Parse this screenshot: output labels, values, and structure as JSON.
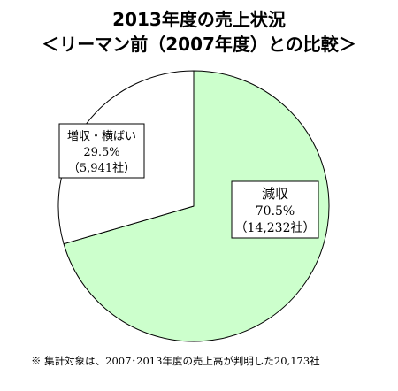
{
  "title_line1": "2013年度の売上状況",
  "title_line2": "＜リーマン前（2007年度）との比較＞",
  "chart_data": {
    "type": "pie",
    "start": "12 o'clock",
    "direction": "clockwise",
    "slices": [
      {
        "label": "減収",
        "percent": 70.5,
        "pct_label": "70.5%",
        "count_label": "（14,232社）",
        "color": "#ccffcc"
      },
      {
        "label": "増収・横ばい",
        "percent": 29.5,
        "pct_label": "29.5%",
        "count_label": "（5,941社）",
        "color": "#ffffff"
      }
    ]
  },
  "footnote": "※ 集計対象は、2007･2013年度の売上高が判明した20,173社"
}
